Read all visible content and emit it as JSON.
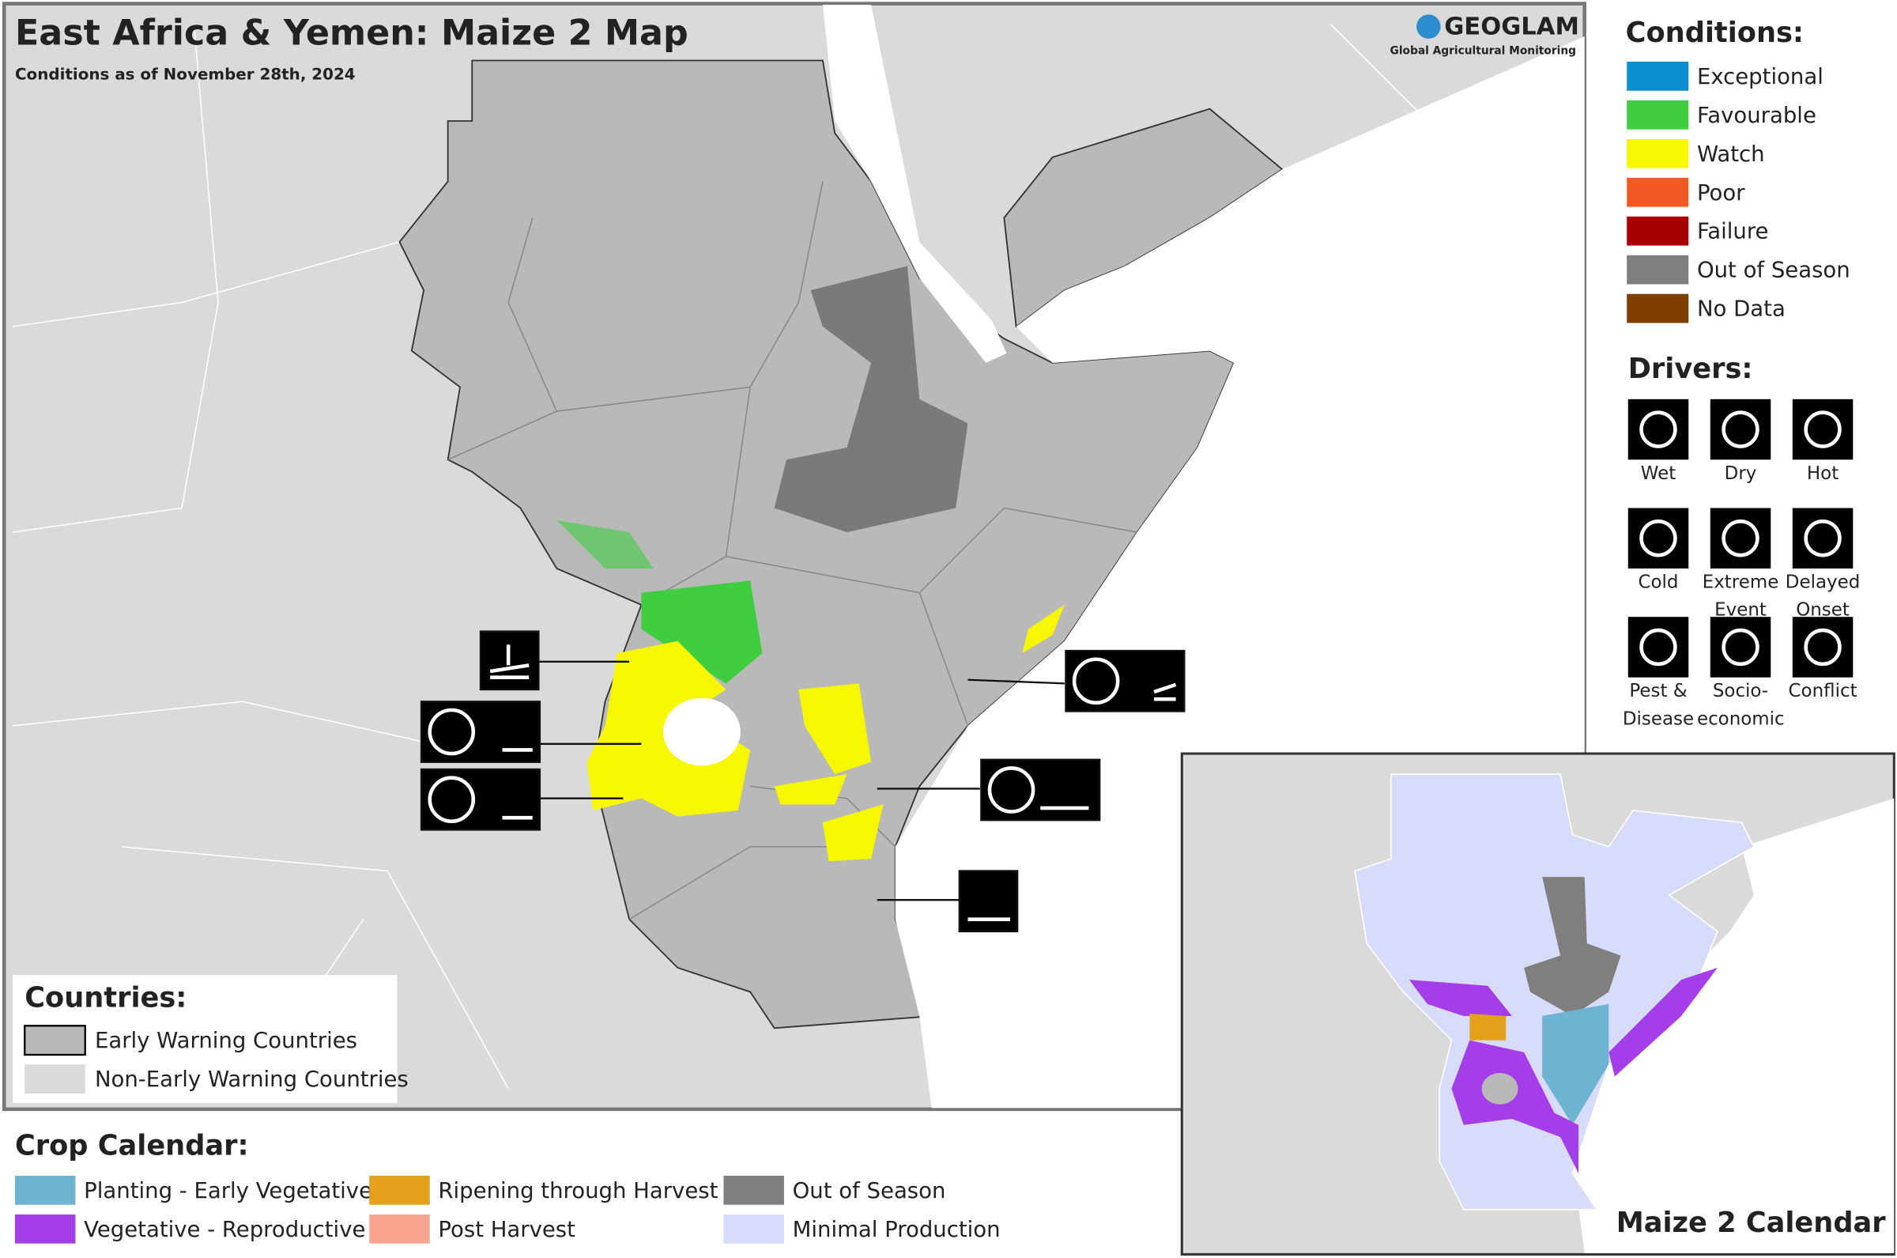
{
  "header": {
    "title": "East Africa & Yemen: Maize 2 Map",
    "subtitle": "Conditions as of November 28th, 2024"
  },
  "logo": {
    "name": "GEOGLAM",
    "tagline": "Global Agricultural Monitoring"
  },
  "conditions": {
    "title": "Conditions:",
    "items": [
      {
        "label": "Exceptional",
        "color": "#0a8fd0"
      },
      {
        "label": "Favourable",
        "color": "#3fce3f"
      },
      {
        "label": "Watch",
        "color": "#f7f700"
      },
      {
        "label": "Poor",
        "color": "#f15a22"
      },
      {
        "label": "Failure",
        "color": "#a80000"
      },
      {
        "label": "Out of Season",
        "color": "#7f7f7f"
      },
      {
        "label": "No Data",
        "color": "#7f3f00"
      }
    ]
  },
  "drivers": {
    "title": "Drivers:",
    "items": [
      "Wet",
      "Dry",
      "Hot",
      "Cold",
      "Extreme Event",
      "Delayed Onset",
      "Pest & Disease",
      "Socio-economic",
      "Conflict"
    ]
  },
  "countries": {
    "title": "Countries:",
    "items": [
      {
        "label": "Early Warning Countries",
        "color": "#b9b9b9"
      },
      {
        "label": "Non-Early Warning Countries",
        "color": "#dadada"
      }
    ]
  },
  "crop_calendar": {
    "title": "Crop Calendar:",
    "items": [
      {
        "label": "Planting - Early Vegetative",
        "color": "#6fb3d2"
      },
      {
        "label": "Vegetative - Reproductive",
        "color": "#a43ee8"
      },
      {
        "label": "Ripening through Harvest",
        "color": "#e4a11b"
      },
      {
        "label": "Post Harvest",
        "color": "#f9a48e"
      },
      {
        "label": "Out of Season",
        "color": "#7f7f7f"
      },
      {
        "label": "Minimal Production",
        "color": "#d6dcfa"
      }
    ]
  },
  "inset": {
    "title": "Maize 2 Calendar"
  }
}
